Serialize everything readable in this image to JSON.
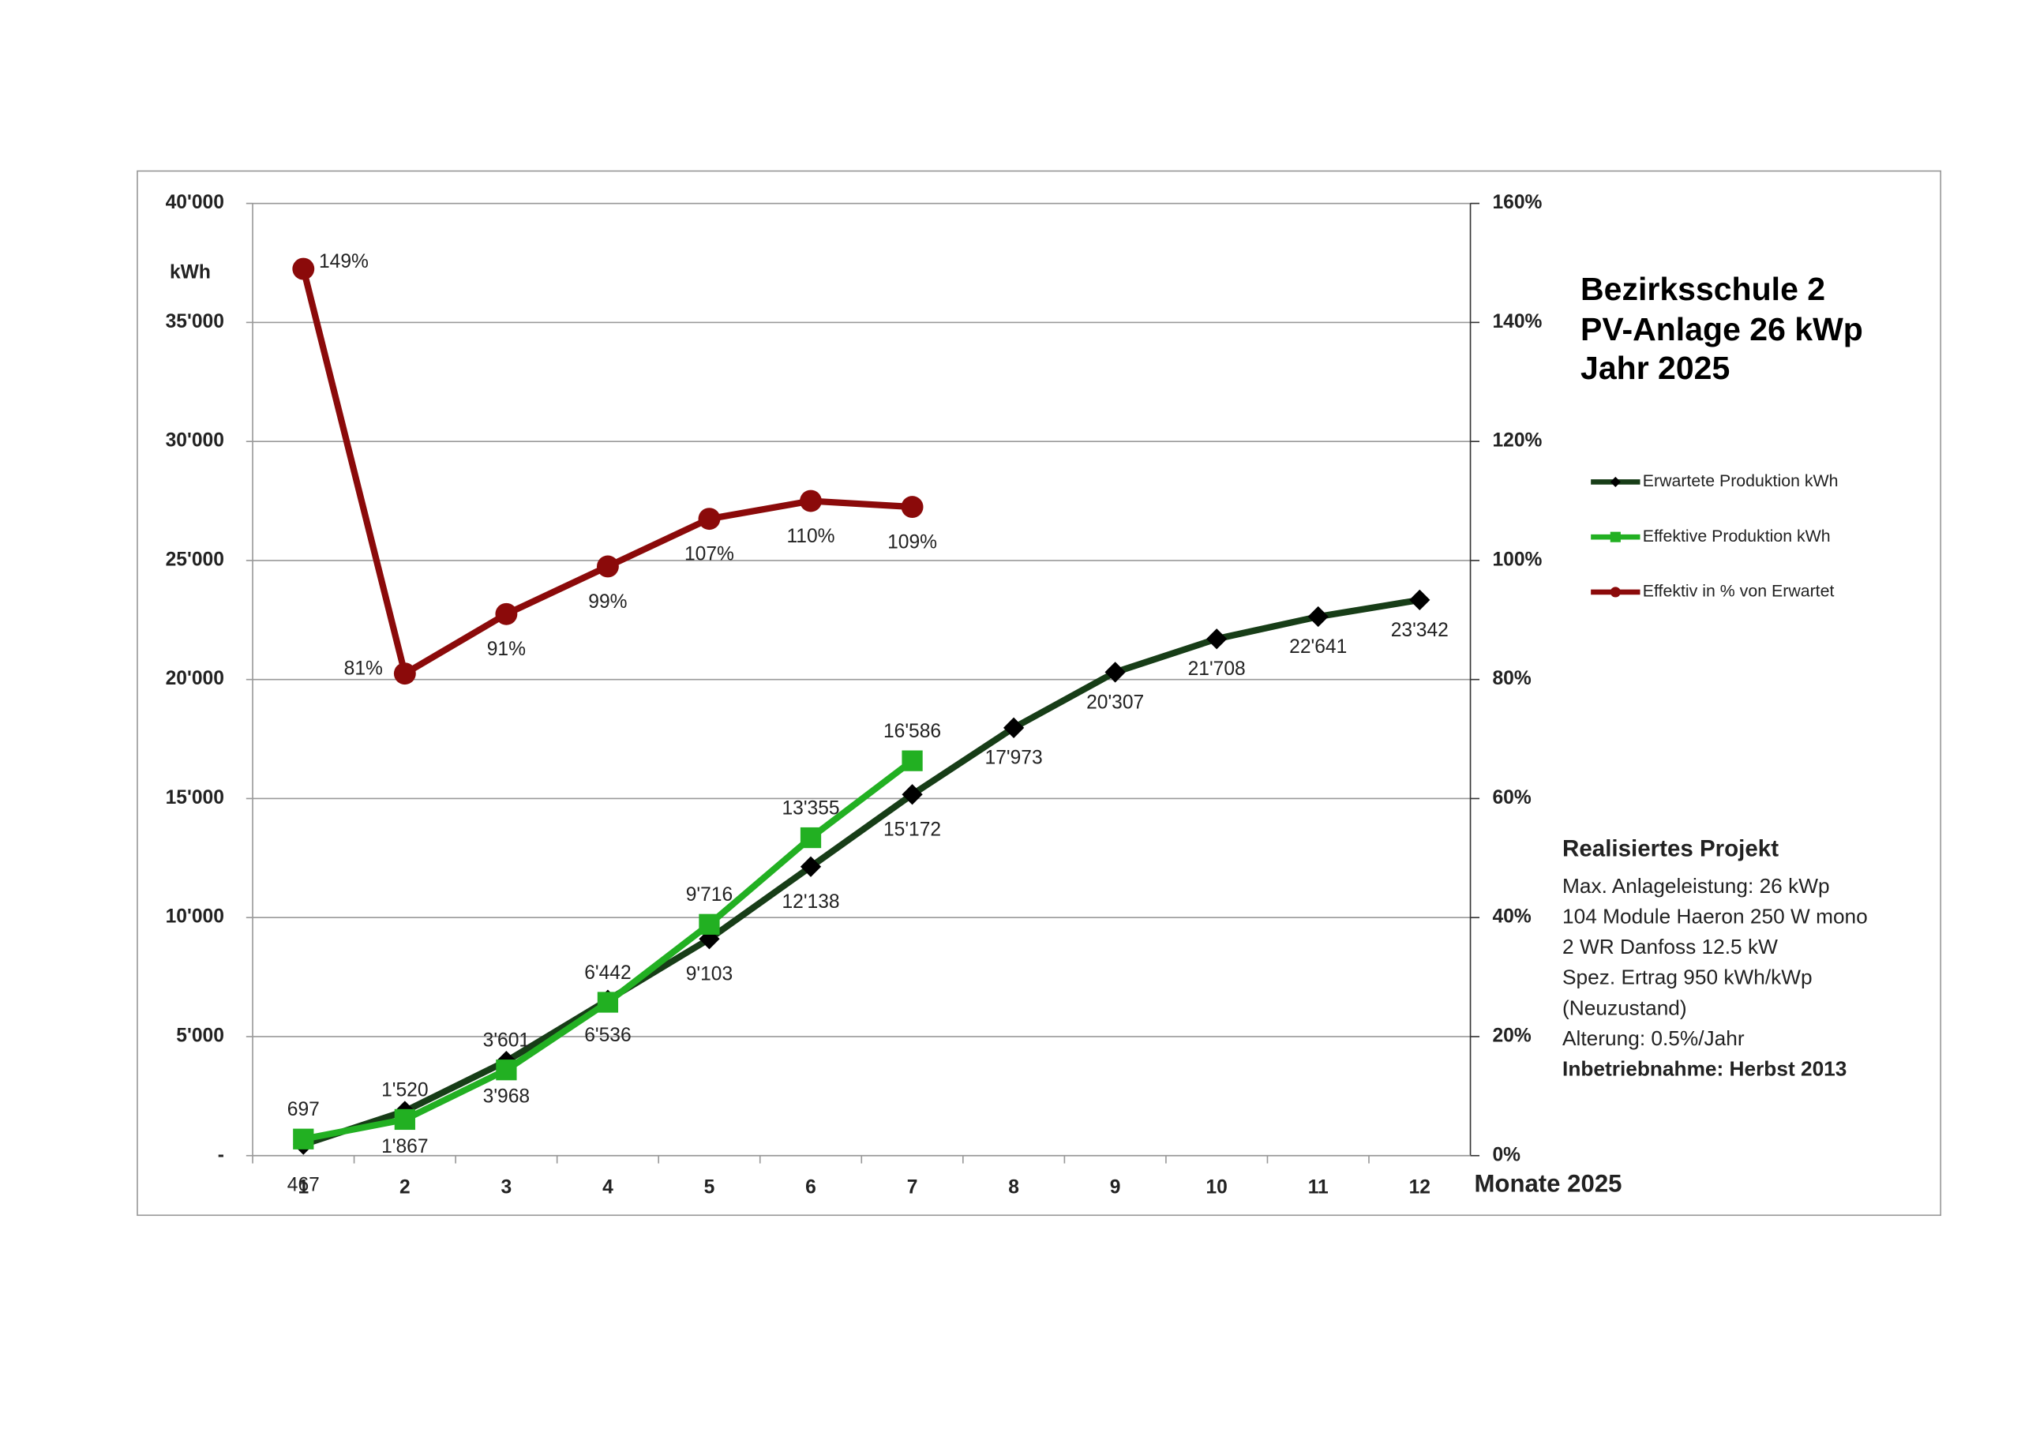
{
  "chart_data": {
    "type": "line",
    "title": [
      "Bezirksschule 2",
      "PV-Anlage 26 kWp",
      "Jahr 2025"
    ],
    "y_label": "kWh",
    "x_label": "Monate 2025",
    "categories": [
      "1",
      "2",
      "3",
      "4",
      "5",
      "6",
      "7",
      "8",
      "9",
      "10",
      "11",
      "12"
    ],
    "ylim": [
      0,
      40000
    ],
    "yticks": [
      {
        "value": 0,
        "label": "-"
      },
      {
        "value": 5000,
        "label": "5'000"
      },
      {
        "value": 10000,
        "label": "10'000"
      },
      {
        "value": 15000,
        "label": "15'000"
      },
      {
        "value": 20000,
        "label": "20'000"
      },
      {
        "value": 25000,
        "label": "25'000"
      },
      {
        "value": 30000,
        "label": "30'000"
      },
      {
        "value": 35000,
        "label": "35'000"
      },
      {
        "value": 40000,
        "label": "40'000"
      }
    ],
    "y2lim": [
      0,
      160
    ],
    "y2ticks": [
      {
        "value": 0,
        "label": "0%"
      },
      {
        "value": 20,
        "label": "20%"
      },
      {
        "value": 40,
        "label": "40%"
      },
      {
        "value": 60,
        "label": "60%"
      },
      {
        "value": 80,
        "label": "80%"
      },
      {
        "value": 100,
        "label": "100%"
      },
      {
        "value": 120,
        "label": "120%"
      },
      {
        "value": 140,
        "label": "140%"
      },
      {
        "value": 160,
        "label": "160%"
      }
    ],
    "grid": true,
    "series": [
      {
        "name": "Erwartete Produktion kWh",
        "color": "#173d17",
        "marker": "diamond",
        "values": [
          467,
          1867,
          3968,
          6536,
          9103,
          12138,
          15172,
          17973,
          20307,
          21708,
          22641,
          23342
        ],
        "value_labels": [
          "467",
          "1'867",
          "3'968",
          "6'536",
          "9'103",
          "12'138",
          "15'172",
          "17'973",
          "20'307",
          "21'708",
          "22'641",
          "23'342"
        ]
      },
      {
        "name": "Effektive Produktion kWh",
        "color": "#22b022",
        "marker": "square",
        "values": [
          697,
          1520,
          3601,
          6442,
          9716,
          13355,
          16586,
          null,
          null,
          null,
          null,
          null
        ],
        "value_labels": [
          "697",
          "1'520",
          "3'601",
          "6'442",
          "9'716",
          "13'355",
          "16'586",
          null,
          null,
          null,
          null,
          null
        ]
      },
      {
        "name": "Effektiv in % von Erwartet",
        "color": "#8b0a0a",
        "marker": "circle",
        "axis": "y2",
        "values": [
          149,
          81,
          91,
          99,
          107,
          110,
          109,
          null,
          null,
          null,
          null,
          null
        ],
        "value_labels": [
          "149%",
          "81%",
          "91%",
          "99%",
          "107%",
          "110%",
          "109%",
          null,
          null,
          null,
          null,
          null
        ]
      }
    ],
    "info": {
      "heading": "Realisiertes Projekt",
      "lines": [
        "Max. Anlageleistung: 26 kWp",
        "104 Module Haeron 250 W mono",
        "2 WR Danfoss 12.5 kW",
        "Spez. Ertrag 950 kWh/kWp",
        "(Neuzustand)",
        "Alterung: 0.5%/Jahr",
        "Inbetriebnahme:  Herbst 2013"
      ]
    }
  }
}
